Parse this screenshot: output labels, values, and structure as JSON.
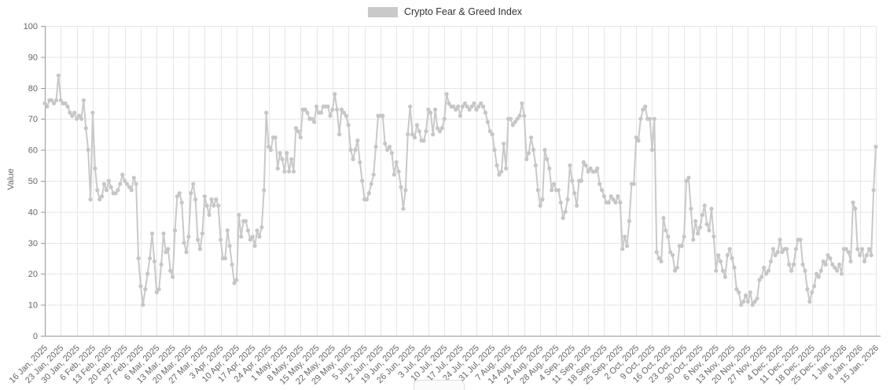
{
  "legend": {
    "label": "Crypto Fear & Greed Index"
  },
  "colors": {
    "series": "#c9c9c9",
    "marker": "#c6c6c6",
    "grid": "#e6e6e6",
    "axis": "#999999",
    "tick_text": "#666666",
    "legend_text": "#333333",
    "background": "#ffffff"
  },
  "chart_data": {
    "type": "line",
    "title": "",
    "ylabel": "Value",
    "xlabel": "",
    "ylim": [
      0,
      100
    ],
    "y_ticks": [
      0,
      10,
      20,
      30,
      40,
      50,
      60,
      70,
      80,
      90,
      100
    ],
    "grid": true,
    "legend_position": "top-center",
    "marker": "circle",
    "x_tick_labels": [
      "16 Jan, 2025",
      "23 Jan, 2025",
      "30 Jan, 2025",
      "6 Feb, 2025",
      "13 Feb, 2025",
      "20 Feb, 2025",
      "27 Feb, 2025",
      "6 Mar, 2025",
      "13 Mar, 2025",
      "20 Mar, 2025",
      "27 Mar, 2025",
      "3 Apr, 2025",
      "10 Apr, 2025",
      "17 Apr, 2025",
      "24 Apr, 2025",
      "1 May, 2025",
      "8 May, 2025",
      "15 May, 2025",
      "22 May, 2025",
      "29 May, 2025",
      "5 Jun, 2025",
      "12 Jun, 2025",
      "19 Jun, 2025",
      "26 Jun, 2025",
      "3 Jul, 2025",
      "10 Jul, 2025",
      "17 Jul, 2025",
      "24 Jul, 2025",
      "31 Jul, 2025",
      "7 Aug, 2025",
      "14 Aug, 2025",
      "21 Aug, 2025",
      "28 Aug, 2025",
      "4 Sep, 2025",
      "11 Sep, 2025",
      "18 Sep, 2025",
      "25 Sep, 2025",
      "2 Oct, 2025",
      "9 Oct, 2025",
      "16 Oct, 2025",
      "23 Oct, 2025",
      "30 Oct, 2025",
      "6 Nov, 2025",
      "13 Nov, 2025",
      "20 Nov, 2025",
      "27 Nov, 2025",
      "4 Dec, 2025",
      "11 Dec, 2025",
      "18 Dec, 2025",
      "25 Dec, 2025",
      "1 Jan, 2026",
      "8 Jan, 2026",
      "15 Jan, 2026"
    ],
    "points_per_tick": 7,
    "series": [
      {
        "name": "Crypto Fear & Greed Index",
        "color": "#c9c9c9",
        "values": [
          75,
          74,
          76,
          76,
          75,
          76,
          84,
          76,
          75,
          75,
          74,
          72,
          71,
          72,
          70,
          71,
          70,
          76,
          67,
          60,
          44,
          72,
          54,
          47,
          44,
          45,
          49,
          47,
          50,
          48,
          46,
          46,
          47,
          49,
          52,
          50,
          49,
          48,
          47,
          51,
          49,
          25,
          16,
          10,
          15,
          20,
          25,
          33,
          24,
          14,
          15,
          23,
          33,
          27,
          28,
          21,
          19,
          34,
          45,
          46,
          43,
          30,
          27,
          32,
          46,
          49,
          44,
          31,
          28,
          33,
          45,
          42,
          39,
          44,
          42,
          44,
          42,
          31,
          25,
          25,
          34,
          29,
          23,
          17,
          18,
          39,
          32,
          37,
          37,
          34,
          31,
          32,
          29,
          34,
          32,
          35,
          47,
          72,
          61,
          60,
          64,
          64,
          54,
          59,
          57,
          53,
          59,
          53,
          57,
          53,
          67,
          66,
          64,
          73,
          73,
          72,
          70,
          70,
          69,
          74,
          72,
          72,
          74,
          74,
          74,
          71,
          73,
          78,
          73,
          65,
          73,
          72,
          71,
          68,
          60,
          57,
          60,
          63,
          56,
          50,
          44,
          44,
          46,
          49,
          52,
          61,
          71,
          71,
          71,
          62,
          60,
          61,
          59,
          52,
          56,
          53,
          48,
          41,
          47,
          65,
          74,
          65,
          64,
          68,
          66,
          63,
          63,
          66,
          73,
          72,
          65,
          73,
          67,
          66,
          67,
          70,
          78,
          75,
          74,
          74,
          73,
          74,
          71,
          74,
          75,
          74,
          73,
          74,
          75,
          73,
          74,
          75,
          74,
          72,
          69,
          66,
          65,
          60,
          55,
          52,
          53,
          62,
          54,
          70,
          70,
          68,
          69,
          70,
          71,
          75,
          71,
          57,
          59,
          64,
          60,
          55,
          47,
          42,
          44,
          60,
          57,
          54,
          47,
          49,
          47,
          47,
          43,
          38,
          40,
          44,
          55,
          50,
          46,
          42,
          50,
          50,
          56,
          55,
          53,
          54,
          53,
          53,
          54,
          49,
          47,
          45,
          43,
          43,
          45,
          44,
          43,
          45,
          43,
          28,
          32,
          29,
          37,
          49,
          49,
          64,
          63,
          70,
          73,
          74,
          70,
          70,
          60,
          70,
          27,
          25,
          24,
          38,
          34,
          32,
          27,
          26,
          21,
          22,
          29,
          29,
          32,
          50,
          51,
          41,
          31,
          37,
          33,
          35,
          39,
          42,
          36,
          34,
          41,
          32,
          21,
          26,
          24,
          21,
          19,
          26,
          28,
          25,
          22,
          15,
          14,
          10,
          11,
          13,
          11,
          14,
          10,
          11,
          12,
          18,
          19,
          22,
          20,
          21,
          24,
          28,
          26,
          27,
          31,
          27,
          28,
          28,
          23,
          21,
          23,
          28,
          31,
          31,
          23,
          21,
          15,
          11,
          14,
          16,
          20,
          19,
          21,
          24,
          23,
          26,
          25,
          23,
          22,
          21,
          23,
          20,
          28,
          28,
          27,
          24,
          43,
          41,
          28,
          26,
          28,
          24,
          26,
          28,
          26,
          47,
          61
        ]
      }
    ]
  }
}
